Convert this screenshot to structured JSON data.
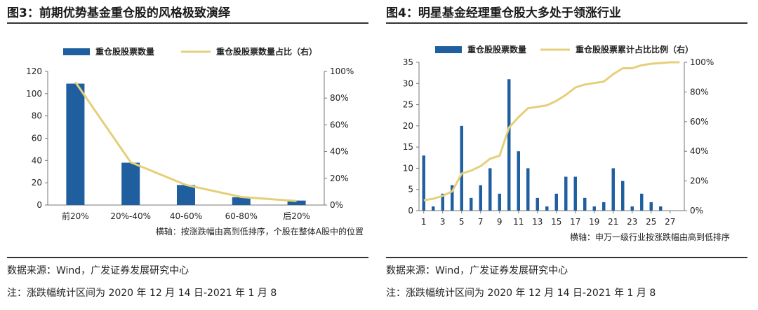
{
  "charts": [
    {
      "title": "图3：前期优势基金重仓股的风格极致演绎",
      "source": "数据来源：Wind，广发证券发展研究中心",
      "note": "注：涨跌幅统计区间为 2020 年 12 月 14 日-2021 年 1 月 8",
      "xnote": "横轴：按涨跌幅由高到低排序，个股在整体A股中的位置",
      "colors": {
        "bar": "#1f5fa0",
        "line": "#e6cf7a"
      }
    },
    {
      "title": "图4：明星基金经理重仓股大多处于领涨行业",
      "source": "数据来源：Wind，广发证券发展研究中心",
      "note": "注：涨跌幅统计区间为 2020 年 12 月 14 日-2021 年 1 月 8",
      "xnote": "横轴：申万一级行业按涨跌幅由高到低排序",
      "colors": {
        "bar": "#1f5fa0",
        "line": "#e6cf7a"
      }
    }
  ],
  "chart_data": [
    {
      "type": "bar",
      "categories": [
        "前20%",
        "20%-40%",
        "40-60%",
        "60-80%",
        "后20%"
      ],
      "series": [
        {
          "name": "重仓股股票数量",
          "type": "bar",
          "axis": "left",
          "values": [
            109,
            38,
            18,
            7,
            4
          ]
        },
        {
          "name": "重仓股股票数量占比（右）",
          "type": "line",
          "axis": "right",
          "values": [
            92,
            32,
            15,
            6,
            3
          ]
        }
      ],
      "ylim": [
        0,
        120
      ],
      "yticks": [
        "0",
        "20",
        "40",
        "60",
        "80",
        "100",
        "120"
      ],
      "y2lim": [
        0,
        100
      ],
      "y2ticks": [
        "0%",
        "20%",
        "40%",
        "60%",
        "80%",
        "100%"
      ],
      "legend": "top"
    },
    {
      "type": "bar",
      "categories": [
        "1",
        "2",
        "3",
        "4",
        "5",
        "6",
        "7",
        "8",
        "9",
        "10",
        "11",
        "12",
        "13",
        "14",
        "15",
        "16",
        "17",
        "18",
        "19",
        "20",
        "21",
        "22",
        "23",
        "24",
        "25",
        "26",
        "27",
        "28"
      ],
      "xticks": [
        "1",
        "3",
        "5",
        "7",
        "9",
        "11",
        "13",
        "15",
        "17",
        "19",
        "21",
        "23",
        "25",
        "27"
      ],
      "series": [
        {
          "name": "重仓股股票数量",
          "type": "bar",
          "axis": "left",
          "values": [
            13,
            1,
            4,
            6,
            20,
            3,
            6,
            10,
            4,
            31,
            14,
            10,
            3,
            1,
            4,
            8,
            8,
            3,
            1,
            2,
            10,
            7,
            1,
            4,
            2,
            1,
            0,
            0
          ]
        },
        {
          "name": "重仓股股票累计占比比例（右）",
          "type": "line",
          "axis": "right",
          "values": [
            7,
            8,
            10,
            13,
            25,
            27,
            30,
            35,
            37,
            56,
            63,
            69,
            70,
            71,
            74,
            78,
            83,
            85,
            86,
            87,
            92,
            96,
            96,
            98,
            99,
            99.5,
            100,
            100
          ]
        }
      ],
      "ylim": [
        0,
        35
      ],
      "yticks": [
        "0",
        "5",
        "10",
        "15",
        "20",
        "25",
        "30",
        "35"
      ],
      "y2lim": [
        0,
        100
      ],
      "y2ticks": [
        "0%",
        "20%",
        "40%",
        "60%",
        "80%",
        "100%"
      ],
      "legend": "top"
    }
  ]
}
